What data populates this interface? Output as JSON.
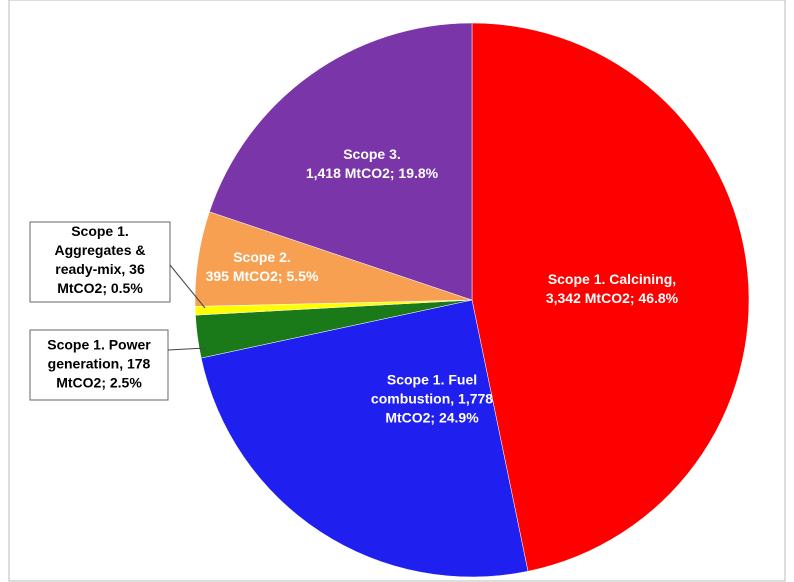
{
  "chart_data": {
    "type": "pie",
    "values": [
      3342,
      1778,
      178,
      36,
      395,
      1418
    ],
    "value_labels": [
      [
        "Scope 1. Calcining,",
        "3,342 MtCO2; 46.8%"
      ],
      [
        "Scope 1. Fuel",
        "combustion, 1,778",
        "MtCO2; 24.9%"
      ],
      [
        "Scope 1. Power",
        "generation, 178",
        "MtCO2; 2.5%"
      ],
      [
        "Scope 1.",
        "Aggregates &",
        "ready-mix, 36",
        "MtCO2; 0.5%"
      ],
      [
        "Scope 2.",
        "395 MtCO2; 5.5%"
      ],
      [
        "Scope 3.",
        "1,418 MtCO2; 19.8%"
      ]
    ],
    "colors": [
      "#ff0000",
      "#1f1ff0",
      "#1a7a1a",
      "#ffff00",
      "#f7a052",
      "#7a35a8"
    ]
  }
}
